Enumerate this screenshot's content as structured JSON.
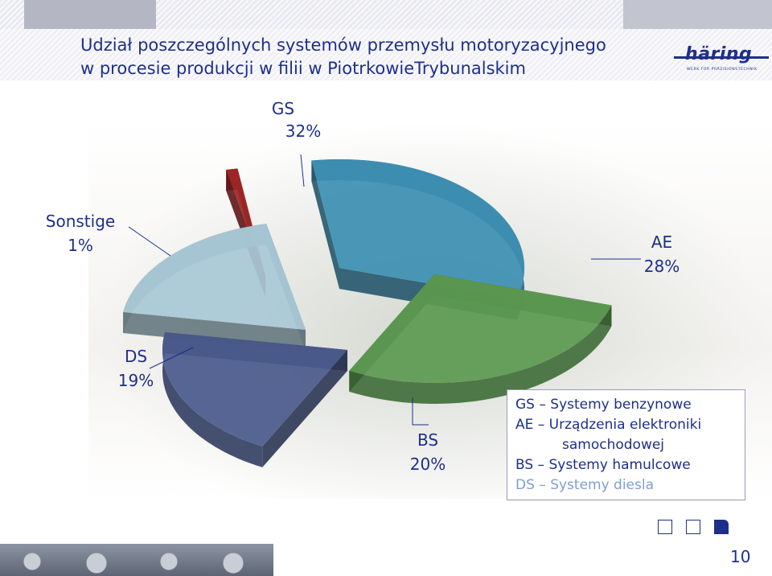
{
  "slide": {
    "title_line1": "Udział poszczególnych systemów przemysłu motoryzacyjnego",
    "title_line2": "w procesie produkcji w filii w  PiotrkowieTrybunalskim",
    "logo_text": "häring",
    "logo_subtext": "WERK FÜR PRÄZISIONSTECHNIK",
    "page_number": "10",
    "colors": {
      "title": "#1e2f8a",
      "label": "#1e2f8a"
    }
  },
  "chart_data": {
    "type": "pie",
    "style": "3d-exploded",
    "categories": [
      "GS",
      "AE",
      "BS",
      "DS",
      "Sonstige"
    ],
    "values": [
      32,
      28,
      20,
      19,
      1
    ],
    "labels": [
      {
        "name": "GS",
        "pct": "32%"
      },
      {
        "name": "AE",
        "pct": "28%"
      },
      {
        "name": "BS",
        "pct": "20%"
      },
      {
        "name": "DS",
        "pct": "19%"
      },
      {
        "name": "Sonstige",
        "pct": "1%"
      }
    ],
    "colors": [
      "#3d8fb3",
      "#5c9a52",
      "#4a5a8c",
      "#a9c8d6",
      "#9e2526"
    ],
    "legend": {
      "position": "bottom-right",
      "entries": [
        {
          "abbr": "GS",
          "dash": "–",
          "text": "Systemy  benzynowe",
          "color": "#1e2f8a"
        },
        {
          "abbr": "AE",
          "dash": "–",
          "text": "Urządzenia elektroniki",
          "color": "#1e2f8a"
        },
        {
          "abbr": "",
          "dash": "",
          "text": "samochodowej",
          "color": "#1e2f8a"
        },
        {
          "abbr": "BS",
          "dash": "–",
          "text": "Systemy hamulcowe",
          "color": "#1e2f8a"
        },
        {
          "abbr": "DS",
          "dash": "–",
          "text": "Systemy diesla",
          "color": "#7e9fd0"
        }
      ]
    }
  }
}
